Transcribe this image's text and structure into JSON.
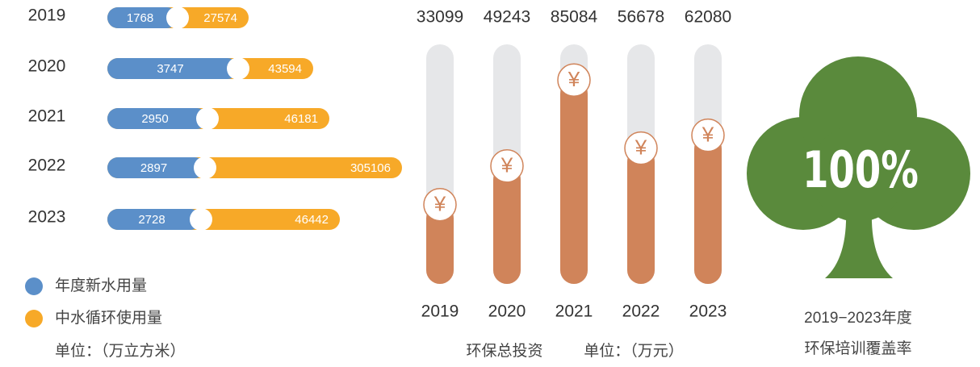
{
  "water_usage": {
    "rows": [
      {
        "year": "2019",
        "new_water": "1768",
        "recycled": "27574"
      },
      {
        "year": "2020",
        "new_water": "3747",
        "recycled": "43594"
      },
      {
        "year": "2021",
        "new_water": "2950",
        "recycled": "46181"
      },
      {
        "year": "2022",
        "new_water": "2897",
        "recycled": "305106"
      },
      {
        "year": "2023",
        "new_water": "2728",
        "recycled": "46442"
      }
    ],
    "legend": [
      {
        "label": "年度新水用量",
        "color": "#5b8fc9"
      },
      {
        "label": "中水循环使用量",
        "color": "#f7a928"
      }
    ],
    "unit": "单位：（万立方米）"
  },
  "chart_data": {
    "type": "bar",
    "categories": [
      "2019",
      "2020",
      "2021",
      "2022",
      "2023"
    ],
    "values": [
      33099,
      49243,
      85084,
      56678,
      62080
    ],
    "color": "#d0845a",
    "ylim": [
      0,
      100000
    ],
    "title": "环保总投资",
    "unit": "单位：（万元）",
    "marker": "¥"
  },
  "training": {
    "value": "100%",
    "caption": [
      "2019−2023年度",
      "环保培训覆盖率"
    ],
    "color": "#5a8a3c"
  }
}
